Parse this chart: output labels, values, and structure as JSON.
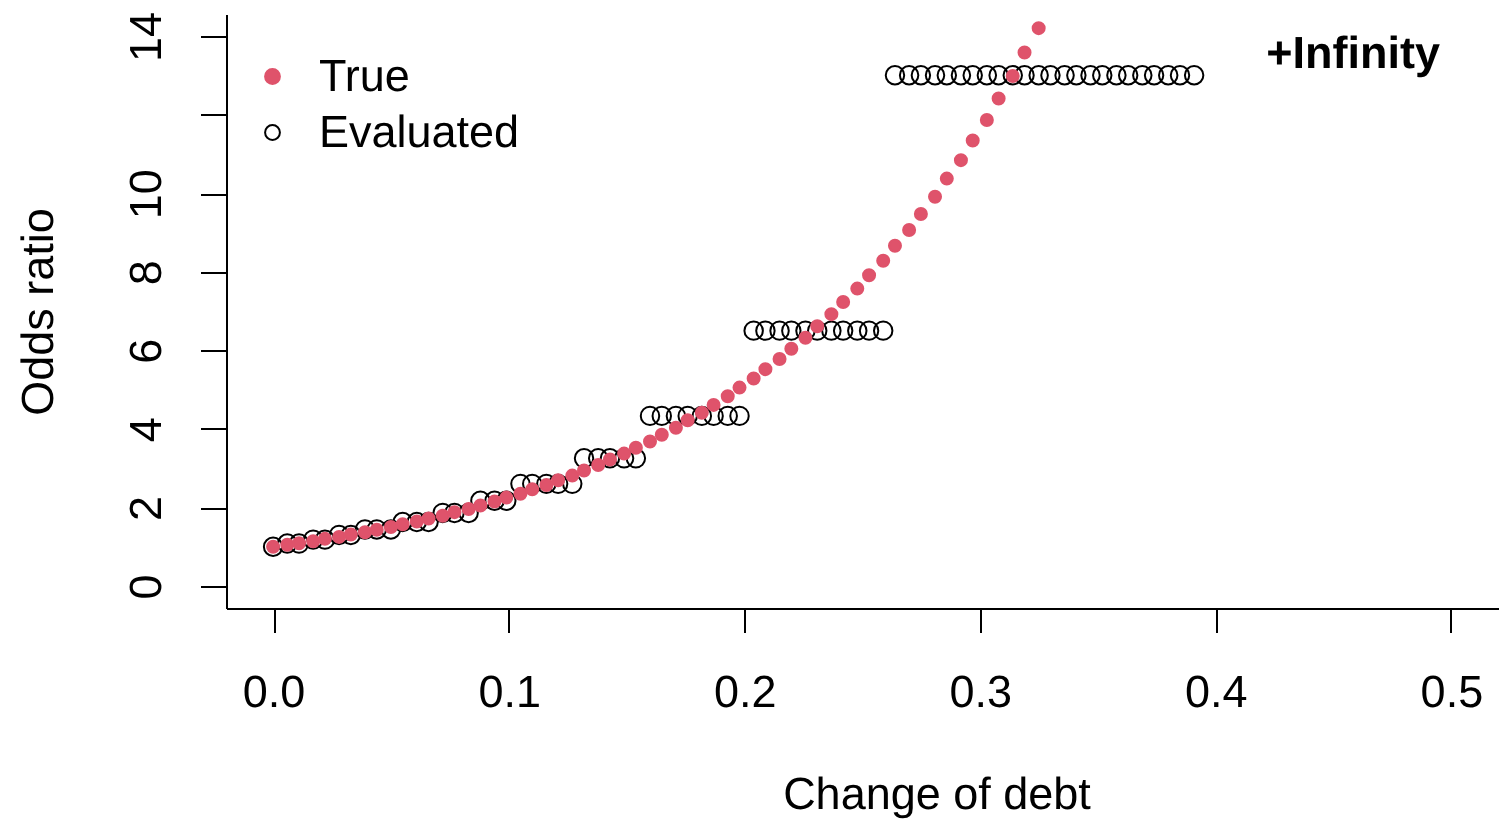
{
  "chart_data": {
    "type": "scatter",
    "xlabel": "Change of debt",
    "ylabel": "Odds ratio",
    "xlim": [
      -0.02,
      0.52
    ],
    "ylim": [
      -0.56,
      14.56
    ],
    "xticks": [
      {
        "value": 0,
        "label": "0.0"
      },
      0.1,
      0.2,
      0.3,
      0.4,
      0.5
    ],
    "yticks": [
      0,
      2,
      4,
      6,
      8,
      10,
      {
        "value": 12,
        "label": null
      },
      14
    ],
    "legend": "top left",
    "annotations": [
      "+Infinity"
    ],
    "series": [
      {
        "name": "True",
        "color": "#df536b",
        "marker": "circle",
        "x": [
          0,
          0.006,
          0.011,
          0.017,
          0.022,
          0.028,
          0.033,
          0.039,
          0.044,
          0.05,
          0.055,
          0.061,
          0.066,
          0.072,
          0.077,
          0.083,
          0.088,
          0.094,
          0.099,
          0.105,
          0.11,
          0.116,
          0.121,
          0.127,
          0.132,
          0.138,
          0.143,
          0.149,
          0.154,
          0.16,
          0.165,
          0.171,
          0.176,
          0.182,
          0.187,
          0.193,
          0.198,
          0.204,
          0.209,
          0.215,
          0.22,
          0.226,
          0.231,
          0.237,
          0.242,
          0.248,
          0.253,
          0.259,
          0.264,
          0.27,
          0.275,
          0.281,
          0.286,
          0.292,
          0.297,
          0.303,
          0.308,
          0.314,
          0.319,
          0.325
        ],
        "values": [
          1,
          1.05,
          1.09,
          1.14,
          1.2,
          1.25,
          1.31,
          1.37,
          1.43,
          1.5,
          1.57,
          1.64,
          1.72,
          1.79,
          1.88,
          1.96,
          2.05,
          2.15,
          2.25,
          2.35,
          2.46,
          2.57,
          2.69,
          2.81,
          2.94,
          3.08,
          3.22,
          3.37,
          3.52,
          3.68,
          3.85,
          4.03,
          4.22,
          4.41,
          4.61,
          4.83,
          5.05,
          5.28,
          5.52,
          5.78,
          6.04,
          6.32,
          6.61,
          6.92,
          7.23,
          7.57,
          7.91,
          8.28,
          8.66,
          9.06,
          9.47,
          9.91,
          10.37,
          10.84,
          11.34,
          11.86,
          12.41,
          12.98,
          13.58,
          14.2
        ]
      },
      {
        "name": "Evaluated",
        "color": "#000000",
        "marker": "open circle",
        "x": [
          0,
          0.006,
          0.011,
          0.017,
          0.022,
          0.028,
          0.033,
          0.039,
          0.044,
          0.05,
          0.055,
          0.061,
          0.066,
          0.072,
          0.077,
          0.083,
          0.088,
          0.094,
          0.099,
          0.105,
          0.11,
          0.116,
          0.121,
          0.127,
          0.132,
          0.138,
          0.143,
          0.149,
          0.154,
          0.16,
          0.165,
          0.171,
          0.176,
          0.182,
          0.187,
          0.193,
          0.198,
          0.204,
          0.209,
          0.215,
          0.22,
          0.226,
          0.231,
          0.237,
          0.242,
          0.248,
          0.253,
          0.259,
          0.264,
          0.27,
          0.275,
          0.281,
          0.286,
          0.292,
          0.297,
          0.303,
          0.308,
          0.314,
          0.319,
          0.325,
          0.33,
          0.336,
          0.341,
          0.347,
          0.352,
          0.358,
          0.363,
          0.369,
          0.374,
          0.38,
          0.385,
          0.391
        ],
        "values": [
          1,
          1.08,
          1.08,
          1.18,
          1.18,
          1.3,
          1.3,
          1.44,
          1.44,
          1.44,
          1.63,
          1.63,
          1.63,
          1.86,
          1.86,
          1.86,
          2.17,
          2.17,
          2.17,
          2.6,
          2.6,
          2.6,
          2.6,
          2.6,
          3.25,
          3.25,
          3.25,
          3.25,
          3.25,
          4.33,
          4.33,
          4.33,
          4.33,
          4.33,
          4.33,
          4.33,
          4.33,
          6.5,
          6.5,
          6.5,
          6.5,
          6.5,
          6.5,
          6.5,
          6.5,
          6.5,
          6.5,
          6.5,
          13,
          13,
          13,
          13,
          13,
          13,
          13,
          13,
          13,
          13,
          13,
          13,
          13,
          13,
          13,
          13,
          13,
          13,
          13,
          13,
          13,
          13,
          13,
          13
        ]
      }
    ]
  }
}
